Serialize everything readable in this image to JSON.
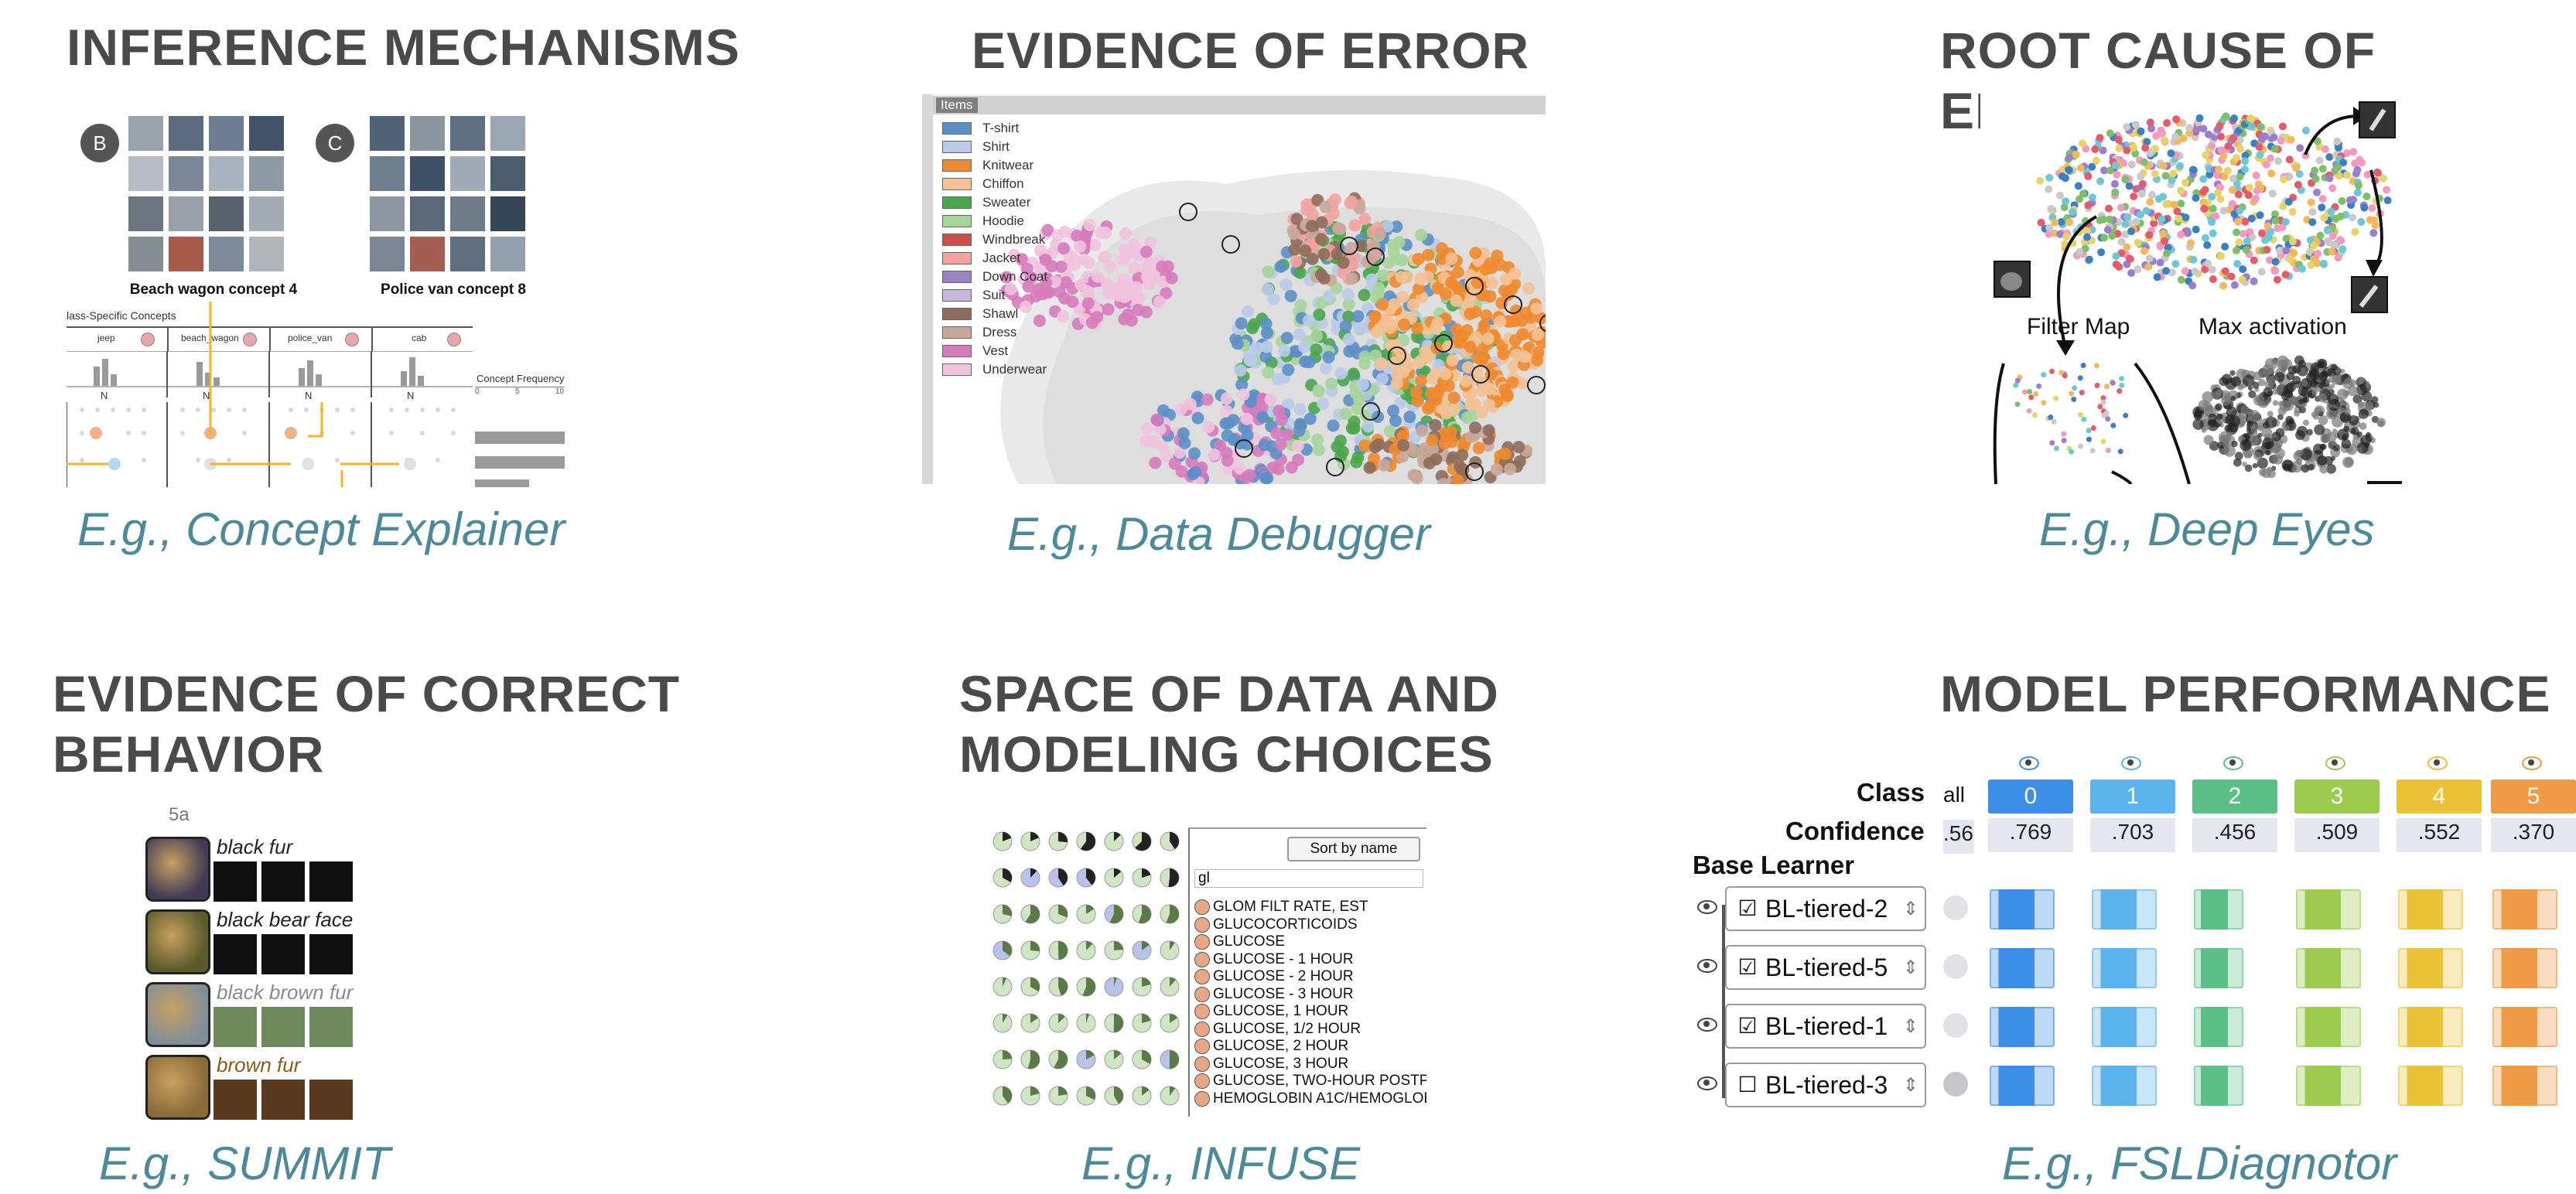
{
  "panels": [
    {
      "heading": "INFERENCE MECHANISMS",
      "caption": "E.g., Concept Explainer"
    },
    {
      "heading": "EVIDENCE OF ERROR",
      "caption": "E.g., Data Debugger"
    },
    {
      "heading": "ROOT CAUSE OF ERROR",
      "caption": "E.g., Deep Eyes"
    },
    {
      "heading": "EVIDENCE OF CORRECT\nBEHAVIOR",
      "caption": "E.g., SUMMIT"
    },
    {
      "heading": "SPACE OF DATA AND\nMODELING CHOICES",
      "caption": "E.g., INFUSE"
    },
    {
      "heading": "MODEL PERFORMANCE",
      "caption": "E.g., FSLDiagnotor"
    }
  ],
  "concept_explainer": {
    "badge_b": "B",
    "badge_c": "C",
    "label_left": "Beach wagon concept 4",
    "label_right": "Police van concept 8",
    "section_title": "lass-Specific Concepts",
    "classes": [
      "jeep",
      "beach_wagon",
      "police_van",
      "cab"
    ],
    "axis_label": "N",
    "freq_title": "Concept Frequency",
    "freq_ticks": [
      "0",
      "5",
      "10"
    ]
  },
  "data_debugger": {
    "panel_title": "Items",
    "legend": [
      {
        "label": "T-shirt",
        "color": "#5b8fc7"
      },
      {
        "label": "Shirt",
        "color": "#b9cbe9"
      },
      {
        "label": "Knitwear",
        "color": "#ef8a2e"
      },
      {
        "label": "Chiffon",
        "color": "#f5c195"
      },
      {
        "label": "Sweater",
        "color": "#4aa64a"
      },
      {
        "label": "Hoodie",
        "color": "#a6d59a"
      },
      {
        "label": "Windbreak",
        "color": "#d34b4b"
      },
      {
        "label": "Jacket",
        "color": "#f2a3a0"
      },
      {
        "label": "Down Coat",
        "color": "#9b82c2"
      },
      {
        "label": "Suit",
        "color": "#c7b7dc"
      },
      {
        "label": "Shawl",
        "color": "#8f6b5a"
      },
      {
        "label": "Dress",
        "color": "#c9a89a"
      },
      {
        "label": "Vest",
        "color": "#d67bbd"
      },
      {
        "label": "Underwear",
        "color": "#f1c3dd"
      }
    ]
  },
  "deep_eyes": {
    "label_filter_map": "Filter Map",
    "label_max_activation": "Max activation"
  },
  "summit": {
    "header": "5a",
    "rows": [
      {
        "label": "black fur",
        "color": "#222222"
      },
      {
        "label": "black bear face",
        "color": "#222222"
      },
      {
        "label": "black brown fur",
        "color": "#8a8a8a"
      },
      {
        "label": "brown fur",
        "color": "#8a5a1a"
      }
    ]
  },
  "infuse": {
    "sort_button": "Sort by name",
    "search_value": "gl",
    "items": [
      "GLOM FILT RATE, EST",
      "GLUCOCORTICOIDS",
      "GLUCOSE",
      "GLUCOSE - 1 HOUR",
      "GLUCOSE - 2 HOUR",
      "GLUCOSE - 3 HOUR",
      "GLUCOSE, 1 HOUR",
      "GLUCOSE, 1/2 HOUR",
      "GLUCOSE, 2 HOUR",
      "GLUCOSE, 3 HOUR",
      "GLUCOSE, TWO-HOUR POSTPF",
      "HEMOGLOBIN A1C/HEMOGLOE"
    ]
  },
  "fsl": {
    "class_label": "Class",
    "confidence_label": "Confidence",
    "base_learner_label": "Base Learner",
    "all_label": "all",
    "all_confidence": ".56",
    "classes": [
      {
        "name": "0",
        "confidence": ".769",
        "color": "#3d8ee8"
      },
      {
        "name": "1",
        "confidence": ".703",
        "color": "#5cb2ec"
      },
      {
        "name": "2",
        "confidence": ".456",
        "color": "#5bbf86"
      },
      {
        "name": "3",
        "confidence": ".509",
        "color": "#9ccc4e"
      },
      {
        "name": "4",
        "confidence": ".552",
        "color": "#eac238"
      },
      {
        "name": "5",
        "confidence": ".370",
        "color": "#ef9a44"
      }
    ],
    "learners": [
      {
        "name": "BL-tiered-2",
        "checked": "☑"
      },
      {
        "name": "BL-tiered-5",
        "checked": "☑"
      },
      {
        "name": "BL-tiered-1",
        "checked": "☑"
      },
      {
        "name": "BL-tiered-3",
        "checked": "☐"
      }
    ]
  }
}
